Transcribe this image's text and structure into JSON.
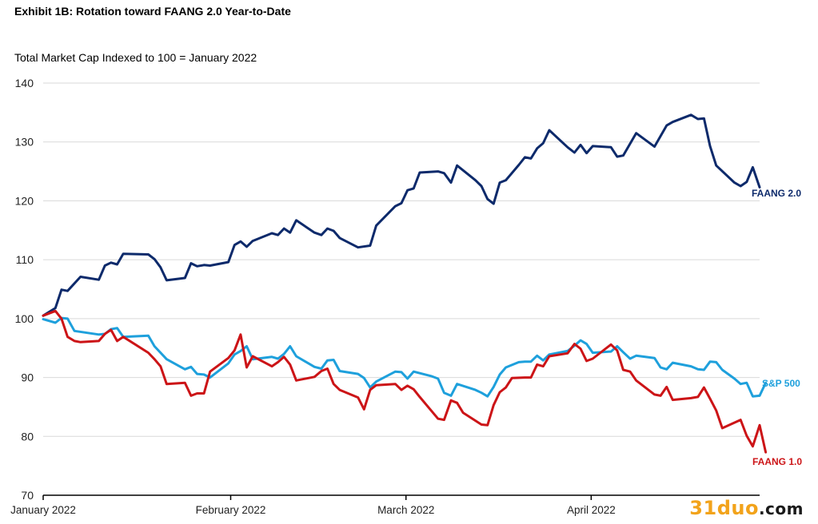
{
  "chart_data": {
    "type": "line",
    "title": "Exhibit 1B: Rotation toward FAANG 2.0 Year-to-Date",
    "subtitle": "Total Market Cap Indexed to 100 = January 2022",
    "ylim": [
      70,
      140
    ],
    "yticks": [
      70,
      80,
      90,
      100,
      110,
      120,
      130,
      140
    ],
    "xlim": [
      0,
      94
    ],
    "xticks": [
      {
        "x": 0,
        "label": "January 2022"
      },
      {
        "x": 24.6,
        "label": "February 2022"
      },
      {
        "x": 47.6,
        "label": "March 2022"
      },
      {
        "x": 71.9,
        "label": "April 2022"
      }
    ],
    "grid": "horizontal",
    "series": [
      {
        "name": "FAANG 2.0",
        "color": "#0d2a6b",
        "points": [
          [
            0,
            100.5
          ],
          [
            1.6,
            101.8
          ],
          [
            2.4,
            104.9
          ],
          [
            3.2,
            104.7
          ],
          [
            4.9,
            107.1
          ],
          [
            7.3,
            106.6
          ],
          [
            8.1,
            109.0
          ],
          [
            8.9,
            109.5
          ],
          [
            9.7,
            109.2
          ],
          [
            10.5,
            111.0
          ],
          [
            13.8,
            110.9
          ],
          [
            14.6,
            110.1
          ],
          [
            15.4,
            108.7
          ],
          [
            16.2,
            106.5
          ],
          [
            18.6,
            106.9
          ],
          [
            19.4,
            109.4
          ],
          [
            20.2,
            108.9
          ],
          [
            21.1,
            109.1
          ],
          [
            21.9,
            109.0
          ],
          [
            24.3,
            109.6
          ],
          [
            25.1,
            112.5
          ],
          [
            25.9,
            113.1
          ],
          [
            26.7,
            112.2
          ],
          [
            27.5,
            113.2
          ],
          [
            30.0,
            114.5
          ],
          [
            30.8,
            114.2
          ],
          [
            31.6,
            115.3
          ],
          [
            32.4,
            114.6
          ],
          [
            33.2,
            116.7
          ],
          [
            35.6,
            114.6
          ],
          [
            36.5,
            114.2
          ],
          [
            37.3,
            115.3
          ],
          [
            38.1,
            114.9
          ],
          [
            38.9,
            113.7
          ],
          [
            41.3,
            112.1
          ],
          [
            42.9,
            112.4
          ],
          [
            43.7,
            115.8
          ],
          [
            46.2,
            119.1
          ],
          [
            47.0,
            119.6
          ],
          [
            47.8,
            121.8
          ],
          [
            48.6,
            122.1
          ],
          [
            49.4,
            124.8
          ],
          [
            51.8,
            125.0
          ],
          [
            52.6,
            124.7
          ],
          [
            53.5,
            123.1
          ],
          [
            54.3,
            126.0
          ],
          [
            56.7,
            123.5
          ],
          [
            57.5,
            122.5
          ],
          [
            58.3,
            120.3
          ],
          [
            59.1,
            119.5
          ],
          [
            59.9,
            123.1
          ],
          [
            60.7,
            123.5
          ],
          [
            62.4,
            126.1
          ],
          [
            63.2,
            127.4
          ],
          [
            64.0,
            127.2
          ],
          [
            64.8,
            128.9
          ],
          [
            65.6,
            129.8
          ],
          [
            66.4,
            132.0
          ],
          [
            68.8,
            129.1
          ],
          [
            69.7,
            128.2
          ],
          [
            70.5,
            129.5
          ],
          [
            71.3,
            128.1
          ],
          [
            72.1,
            129.3
          ],
          [
            74.5,
            129.1
          ],
          [
            75.3,
            127.5
          ],
          [
            76.1,
            127.7
          ],
          [
            77.8,
            131.5
          ],
          [
            80.2,
            129.2
          ],
          [
            81.8,
            132.8
          ],
          [
            82.6,
            133.4
          ],
          [
            85.0,
            134.6
          ],
          [
            85.9,
            133.9
          ],
          [
            86.7,
            134.0
          ],
          [
            87.5,
            129.3
          ],
          [
            88.3,
            126.0
          ],
          [
            90.7,
            123.1
          ],
          [
            91.5,
            122.5
          ],
          [
            92.3,
            123.2
          ],
          [
            93.1,
            125.7
          ],
          [
            94.0,
            122.3
          ]
        ]
      },
      {
        "name": "S&P 500",
        "color": "#1ea0dc",
        "points": [
          [
            0,
            99.9
          ],
          [
            1.6,
            99.3
          ],
          [
            2.4,
            100.1
          ],
          [
            3.2,
            100.0
          ],
          [
            4.1,
            97.9
          ],
          [
            7.3,
            97.3
          ],
          [
            8.1,
            97.4
          ],
          [
            8.9,
            98.2
          ],
          [
            9.7,
            98.4
          ],
          [
            10.5,
            96.9
          ],
          [
            13.8,
            97.1
          ],
          [
            14.6,
            95.3
          ],
          [
            16.2,
            93.1
          ],
          [
            18.6,
            91.4
          ],
          [
            19.4,
            91.8
          ],
          [
            20.2,
            90.6
          ],
          [
            21.1,
            90.5
          ],
          [
            21.9,
            90.0
          ],
          [
            24.3,
            92.4
          ],
          [
            25.1,
            93.9
          ],
          [
            25.9,
            94.5
          ],
          [
            26.7,
            95.3
          ],
          [
            27.5,
            93.1
          ],
          [
            30.0,
            93.5
          ],
          [
            30.8,
            93.2
          ],
          [
            31.6,
            94.0
          ],
          [
            32.4,
            95.3
          ],
          [
            33.2,
            93.6
          ],
          [
            35.6,
            91.8
          ],
          [
            36.5,
            91.5
          ],
          [
            37.3,
            92.9
          ],
          [
            38.1,
            93.0
          ],
          [
            38.9,
            91.1
          ],
          [
            41.3,
            90.6
          ],
          [
            42.1,
            89.9
          ],
          [
            42.9,
            88.3
          ],
          [
            43.7,
            89.3
          ],
          [
            46.2,
            91.0
          ],
          [
            47.0,
            90.9
          ],
          [
            47.8,
            89.8
          ],
          [
            48.6,
            91.0
          ],
          [
            51.0,
            90.2
          ],
          [
            51.8,
            89.8
          ],
          [
            52.6,
            87.4
          ],
          [
            53.5,
            86.9
          ],
          [
            54.3,
            88.9
          ],
          [
            56.7,
            87.9
          ],
          [
            57.5,
            87.4
          ],
          [
            58.3,
            86.8
          ],
          [
            59.1,
            88.4
          ],
          [
            59.9,
            90.5
          ],
          [
            60.7,
            91.7
          ],
          [
            62.4,
            92.6
          ],
          [
            63.2,
            92.7
          ],
          [
            64.0,
            92.7
          ],
          [
            64.8,
            93.7
          ],
          [
            65.6,
            92.9
          ],
          [
            66.4,
            93.9
          ],
          [
            68.8,
            94.5
          ],
          [
            69.7,
            95.4
          ],
          [
            70.5,
            96.3
          ],
          [
            71.3,
            95.7
          ],
          [
            72.1,
            94.2
          ],
          [
            74.5,
            94.4
          ],
          [
            75.3,
            95.3
          ],
          [
            76.1,
            94.3
          ],
          [
            77.0,
            93.2
          ],
          [
            77.8,
            93.7
          ],
          [
            80.2,
            93.3
          ],
          [
            81.0,
            91.7
          ],
          [
            81.8,
            91.4
          ],
          [
            82.6,
            92.5
          ],
          [
            85.0,
            91.9
          ],
          [
            85.9,
            91.4
          ],
          [
            86.7,
            91.3
          ],
          [
            87.5,
            92.7
          ],
          [
            88.3,
            92.6
          ],
          [
            89.1,
            91.3
          ],
          [
            90.7,
            89.8
          ],
          [
            91.5,
            88.9
          ],
          [
            92.3,
            89.1
          ],
          [
            93.1,
            86.8
          ],
          [
            94.0,
            86.9
          ],
          [
            94.8,
            89.1
          ]
        ]
      },
      {
        "name": "FAANG 1.0",
        "color": "#cc1417",
        "points": [
          [
            0,
            100.5
          ],
          [
            1.6,
            101.3
          ],
          [
            2.4,
            100.0
          ],
          [
            3.2,
            96.9
          ],
          [
            4.1,
            96.2
          ],
          [
            4.9,
            96.0
          ],
          [
            7.3,
            96.2
          ],
          [
            8.1,
            97.4
          ],
          [
            8.9,
            98.1
          ],
          [
            9.7,
            96.2
          ],
          [
            10.5,
            96.9
          ],
          [
            13.8,
            94.2
          ],
          [
            14.6,
            93.1
          ],
          [
            15.4,
            91.9
          ],
          [
            16.2,
            88.9
          ],
          [
            18.6,
            89.1
          ],
          [
            19.4,
            86.9
          ],
          [
            20.2,
            87.3
          ],
          [
            21.1,
            87.3
          ],
          [
            21.9,
            91.0
          ],
          [
            24.3,
            93.3
          ],
          [
            25.1,
            94.6
          ],
          [
            25.9,
            97.3
          ],
          [
            26.7,
            91.7
          ],
          [
            27.5,
            93.6
          ],
          [
            30.0,
            91.9
          ],
          [
            30.8,
            92.6
          ],
          [
            31.6,
            93.5
          ],
          [
            32.4,
            92.2
          ],
          [
            33.2,
            89.5
          ],
          [
            35.6,
            90.1
          ],
          [
            36.5,
            91.1
          ],
          [
            37.3,
            91.5
          ],
          [
            38.1,
            88.9
          ],
          [
            38.9,
            87.9
          ],
          [
            41.3,
            86.6
          ],
          [
            42.1,
            84.6
          ],
          [
            42.9,
            87.9
          ],
          [
            43.7,
            88.7
          ],
          [
            46.2,
            88.9
          ],
          [
            47.0,
            87.9
          ],
          [
            47.8,
            88.6
          ],
          [
            48.6,
            88.0
          ],
          [
            49.4,
            86.7
          ],
          [
            51.8,
            83.0
          ],
          [
            52.6,
            82.8
          ],
          [
            53.5,
            86.1
          ],
          [
            54.3,
            85.7
          ],
          [
            55.1,
            84.0
          ],
          [
            57.5,
            82.0
          ],
          [
            58.3,
            81.9
          ],
          [
            59.1,
            85.3
          ],
          [
            59.9,
            87.5
          ],
          [
            60.7,
            88.3
          ],
          [
            61.5,
            89.9
          ],
          [
            63.2,
            90.0
          ],
          [
            64.0,
            90.0
          ],
          [
            64.8,
            92.2
          ],
          [
            65.6,
            91.9
          ],
          [
            66.4,
            93.6
          ],
          [
            68.8,
            94.1
          ],
          [
            69.7,
            95.7
          ],
          [
            70.5,
            94.9
          ],
          [
            71.3,
            92.8
          ],
          [
            72.1,
            93.2
          ],
          [
            74.5,
            95.6
          ],
          [
            75.3,
            94.6
          ],
          [
            76.1,
            91.3
          ],
          [
            77.0,
            91.0
          ],
          [
            77.8,
            89.5
          ],
          [
            80.2,
            87.1
          ],
          [
            81.0,
            86.9
          ],
          [
            81.8,
            88.4
          ],
          [
            82.6,
            86.2
          ],
          [
            85.0,
            86.5
          ],
          [
            85.9,
            86.7
          ],
          [
            86.7,
            88.3
          ],
          [
            87.5,
            86.4
          ],
          [
            88.3,
            84.4
          ],
          [
            89.1,
            81.4
          ],
          [
            91.5,
            82.8
          ],
          [
            92.3,
            80.1
          ],
          [
            93.1,
            78.3
          ],
          [
            94.0,
            81.9
          ],
          [
            94.8,
            77.3
          ]
        ]
      }
    ],
    "series_labels": [
      "FAANG 2.0",
      "S&P 500",
      "FAANG 1.0"
    ]
  },
  "watermark": {
    "main": "31duo",
    "suffix": ".com"
  }
}
